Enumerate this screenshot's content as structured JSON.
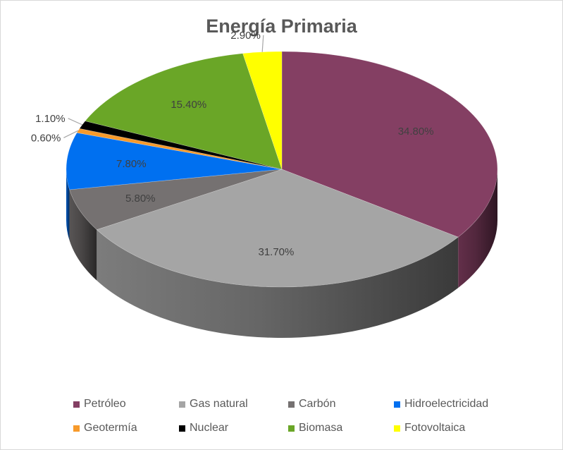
{
  "chart_data": {
    "type": "pie",
    "title": "Energía Primaria",
    "style": "3d-pie",
    "legend_position": "bottom",
    "categories": [
      "Petróleo",
      "Gas natural",
      "Carbón",
      "Hidroelectricidad",
      "Geotermía",
      "Nuclear",
      "Biomasa",
      "Fotovoltaica"
    ],
    "values": [
      34.8,
      31.7,
      5.8,
      7.8,
      0.6,
      1.1,
      15.4,
      2.9
    ],
    "data_labels": [
      "34.80%",
      "31.70%",
      "5.80%",
      "7.80%",
      "0.60%",
      "1.10%",
      "15.40%",
      "2.90%"
    ],
    "colors": [
      "#843f63",
      "#a5a5a5",
      "#757171",
      "#0070f0",
      "#f79a2b",
      "#000000",
      "#6aa627",
      "#ffff00"
    ]
  }
}
